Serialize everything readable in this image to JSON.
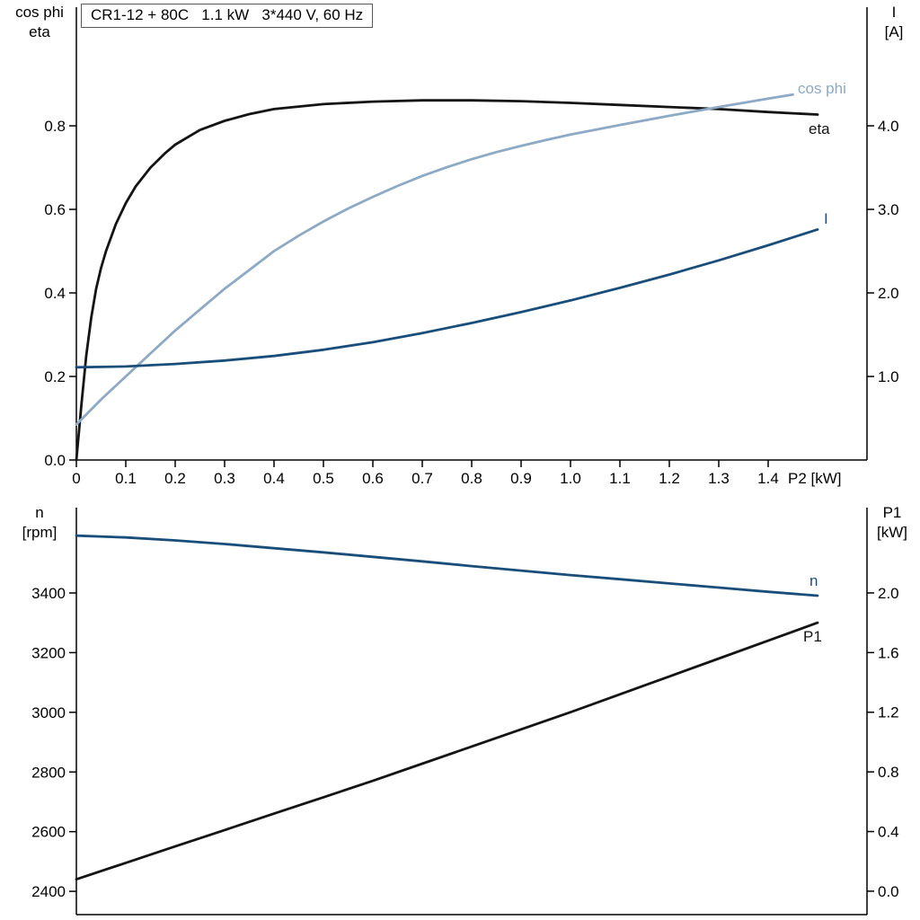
{
  "colors": {
    "axis": "#000000",
    "black_curve": "#141414",
    "dark_blue": "#1a4e7a",
    "light_blue": "#8ca9c6"
  },
  "chart_data": [
    {
      "type": "line",
      "title": "CR1-12 + 80C   1.1 kW   3*440 V, 60 Hz",
      "x_axis": {
        "label": "P2 [kW]",
        "range": [
          0,
          1.6
        ],
        "tick_values": [
          0,
          0.1,
          0.2,
          0.3,
          0.4,
          0.5,
          0.6,
          0.7,
          0.8,
          0.9,
          1.0,
          1.1,
          1.2,
          1.3,
          1.4
        ],
        "tick_labels": [
          "0",
          "0.1",
          "0.2",
          "0.3",
          "0.4",
          "0.5",
          "0.6",
          "0.7",
          "0.8",
          "0.9",
          "1.0",
          "1.1",
          "1.2",
          "1.3",
          "1.4"
        ]
      },
      "left_axis": {
        "label_lines": [
          "cos phi",
          "eta"
        ],
        "range": [
          0,
          1.084
        ],
        "tick_values": [
          0,
          0.2,
          0.4,
          0.6,
          0.8
        ],
        "tick_labels": [
          "0.0",
          "0.2",
          "0.4",
          "0.6",
          "0.8"
        ]
      },
      "right_axis": {
        "label_lines": [
          "I",
          "[A]"
        ],
        "range": [
          0,
          5.42
        ],
        "tick_values": [
          1.0,
          2.0,
          3.0,
          4.0
        ],
        "tick_labels": [
          "1.0",
          "2.0",
          "3.0",
          "4.0"
        ]
      },
      "series": [
        {
          "name": "eta",
          "axis": "left",
          "color": "#141414",
          "points": [
            [
              0,
              0
            ],
            [
              0.01,
              0.13
            ],
            [
              0.02,
              0.25
            ],
            [
              0.03,
              0.34
            ],
            [
              0.04,
              0.41
            ],
            [
              0.05,
              0.46
            ],
            [
              0.06,
              0.5
            ],
            [
              0.08,
              0.565
            ],
            [
              0.1,
              0.615
            ],
            [
              0.12,
              0.655
            ],
            [
              0.15,
              0.7
            ],
            [
              0.18,
              0.735
            ],
            [
              0.2,
              0.755
            ],
            [
              0.25,
              0.79
            ],
            [
              0.3,
              0.812
            ],
            [
              0.35,
              0.828
            ],
            [
              0.4,
              0.84
            ],
            [
              0.5,
              0.852
            ],
            [
              0.6,
              0.858
            ],
            [
              0.7,
              0.861
            ],
            [
              0.8,
              0.861
            ],
            [
              0.9,
              0.859
            ],
            [
              1.0,
              0.855
            ],
            [
              1.1,
              0.85
            ],
            [
              1.2,
              0.845
            ],
            [
              1.3,
              0.84
            ],
            [
              1.4,
              0.833
            ],
            [
              1.5,
              0.827
            ]
          ]
        },
        {
          "name": "cos phi",
          "axis": "left",
          "color": "#8ca9c6",
          "points": [
            [
              0,
              0.085
            ],
            [
              0.05,
              0.145
            ],
            [
              0.1,
              0.2
            ],
            [
              0.15,
              0.255
            ],
            [
              0.2,
              0.31
            ],
            [
              0.25,
              0.36
            ],
            [
              0.3,
              0.41
            ],
            [
              0.35,
              0.455
            ],
            [
              0.4,
              0.5
            ],
            [
              0.45,
              0.537
            ],
            [
              0.5,
              0.571
            ],
            [
              0.55,
              0.602
            ],
            [
              0.6,
              0.63
            ],
            [
              0.65,
              0.656
            ],
            [
              0.7,
              0.68
            ],
            [
              0.75,
              0.701
            ],
            [
              0.8,
              0.72
            ],
            [
              0.85,
              0.737
            ],
            [
              0.9,
              0.752
            ],
            [
              0.95,
              0.766
            ],
            [
              1.0,
              0.779
            ],
            [
              1.1,
              0.802
            ],
            [
              1.2,
              0.824
            ],
            [
              1.3,
              0.845
            ],
            [
              1.4,
              0.865
            ],
            [
              1.45,
              0.875
            ]
          ]
        },
        {
          "name": "I",
          "axis": "right",
          "color": "#1a4e7a",
          "points": [
            [
              0,
              1.11
            ],
            [
              0.1,
              1.12
            ],
            [
              0.2,
              1.15
            ],
            [
              0.3,
              1.19
            ],
            [
              0.4,
              1.245
            ],
            [
              0.5,
              1.32
            ],
            [
              0.6,
              1.41
            ],
            [
              0.7,
              1.52
            ],
            [
              0.8,
              1.64
            ],
            [
              0.9,
              1.77
            ],
            [
              1.0,
              1.91
            ],
            [
              1.1,
              2.06
            ],
            [
              1.2,
              2.22
            ],
            [
              1.3,
              2.39
            ],
            [
              1.4,
              2.57
            ],
            [
              1.5,
              2.76
            ]
          ]
        }
      ]
    },
    {
      "type": "line",
      "title": "",
      "x_axis": {
        "label": "",
        "range": [
          0,
          1.6
        ],
        "tick_values": [],
        "tick_labels": []
      },
      "left_axis": {
        "label_lines": [
          "n",
          "[rpm]"
        ],
        "range": [
          2322,
          3686
        ],
        "tick_values": [
          2400,
          2600,
          2800,
          3000,
          3200,
          3400
        ],
        "tick_labels": [
          "2400",
          "2600",
          "2800",
          "3000",
          "3200",
          "3400"
        ]
      },
      "right_axis": {
        "label_lines": [
          "P1",
          "[kW]"
        ],
        "range": [
          -0.157,
          2.572
        ],
        "tick_values": [
          0.0,
          0.4,
          0.8,
          1.2,
          1.6,
          2.0
        ],
        "tick_labels": [
          "0.0",
          "0.4",
          "0.8",
          "1.2",
          "1.6",
          "2.0"
        ]
      },
      "series": [
        {
          "name": "n",
          "axis": "left",
          "color": "#1a4e7a",
          "points": [
            [
              0,
              3592
            ],
            [
              0.1,
              3586
            ],
            [
              0.2,
              3576
            ],
            [
              0.3,
              3564
            ],
            [
              0.4,
              3550
            ],
            [
              0.5,
              3536
            ],
            [
              0.6,
              3521
            ],
            [
              0.7,
              3506
            ],
            [
              0.8,
              3490
            ],
            [
              0.9,
              3475
            ],
            [
              1.0,
              3460
            ],
            [
              1.1,
              3446
            ],
            [
              1.2,
              3432
            ],
            [
              1.3,
              3418
            ],
            [
              1.4,
              3404
            ],
            [
              1.5,
              3391
            ]
          ]
        },
        {
          "name": "P1",
          "axis": "right",
          "color": "#141414",
          "points": [
            [
              0,
              0.08
            ],
            [
              0.1,
              0.19
            ],
            [
              0.2,
              0.3
            ],
            [
              0.3,
              0.41
            ],
            [
              0.4,
              0.52
            ],
            [
              0.5,
              0.63
            ],
            [
              0.6,
              0.74
            ],
            [
              0.7,
              0.855
            ],
            [
              0.8,
              0.97
            ],
            [
              0.9,
              1.085
            ],
            [
              1.0,
              1.2
            ],
            [
              1.1,
              1.32
            ],
            [
              1.2,
              1.44
            ],
            [
              1.3,
              1.56
            ],
            [
              1.4,
              1.68
            ],
            [
              1.5,
              1.8
            ]
          ]
        }
      ]
    }
  ]
}
